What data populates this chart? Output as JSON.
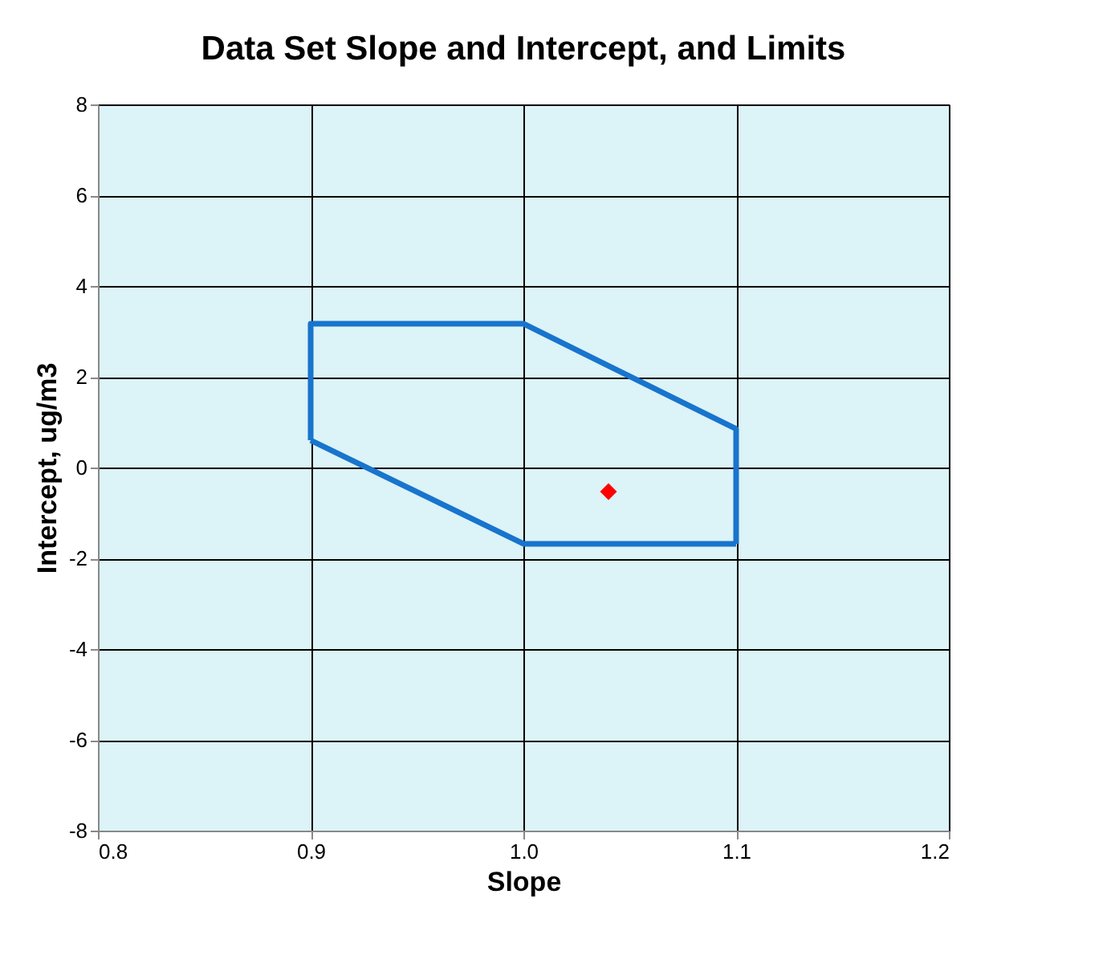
{
  "chart_data": {
    "type": "line",
    "title": "Data Set Slope and Intercept, and Limits",
    "xlabel": "Slope",
    "ylabel": "Intercept, ug/m3",
    "series": [
      {
        "type": "line",
        "color": "#1874cd",
        "x": [
          0.9,
          0.9,
          1.0,
          1.1,
          1.1
        ],
        "values": [
          0.6,
          3.17,
          3.17,
          0.85,
          -1.68
        ],
        "marker": "none"
      },
      {
        "type": "line",
        "color": "#1874cd",
        "x": [
          0.9,
          1.0,
          1.1
        ],
        "values": [
          0.6,
          -1.68,
          -1.68
        ],
        "marker": "none"
      },
      {
        "type": "scatter",
        "color": "#ff0000",
        "x": [
          1.04
        ],
        "values": [
          -0.53
        ],
        "marker": "diamond"
      }
    ],
    "xlim": [
      0.8,
      1.2
    ],
    "xticks": [
      {
        "value": 0.8,
        "label": "0.8"
      },
      {
        "value": 0.9,
        "label": "0.9"
      },
      {
        "value": 1.0,
        "label": "1.0"
      },
      {
        "value": 1.1,
        "label": "1.1"
      },
      {
        "value": 1.2,
        "label": "1.2"
      }
    ],
    "ylim": [
      -8,
      8
    ],
    "yticks": [
      -8,
      -6,
      -4,
      -2,
      0,
      2,
      4,
      6,
      8
    ],
    "grid": true,
    "legend": false
  }
}
